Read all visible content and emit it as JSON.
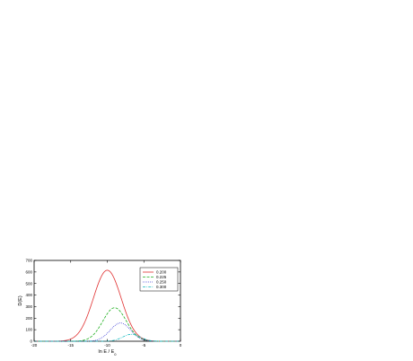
{
  "chart_data": {
    "type": "line",
    "xlabel": "ln E / E",
    "xlabel_sub": "0",
    "ylabel": "D(E)",
    "xlim": [
      -20,
      0
    ],
    "ylim": [
      0,
      700
    ],
    "xticks": [
      -20,
      -15,
      -10,
      -5,
      0
    ],
    "yticks": [
      0,
      100,
      200,
      300,
      400,
      500,
      600,
      700
    ],
    "grid": false,
    "legend_position": "top-right",
    "series": [
      {
        "name": "0.200",
        "color": "#e03030",
        "dash": "solid",
        "peak_x": -10.0,
        "peak_y": 615,
        "width": 1.9
      },
      {
        "name": "0.225",
        "color": "#20b020",
        "dash": "dashed",
        "peak_x": -9.0,
        "peak_y": 290,
        "width": 1.6
      },
      {
        "name": "0.250",
        "color": "#2020d0",
        "dash": "dotted",
        "peak_x": -8.2,
        "peak_y": 158,
        "width": 1.4
      },
      {
        "name": "0.300",
        "color": "#10b8c0",
        "dash": "dashdot",
        "peak_x": -6.7,
        "peak_y": 60,
        "width": 1.2
      }
    ]
  }
}
